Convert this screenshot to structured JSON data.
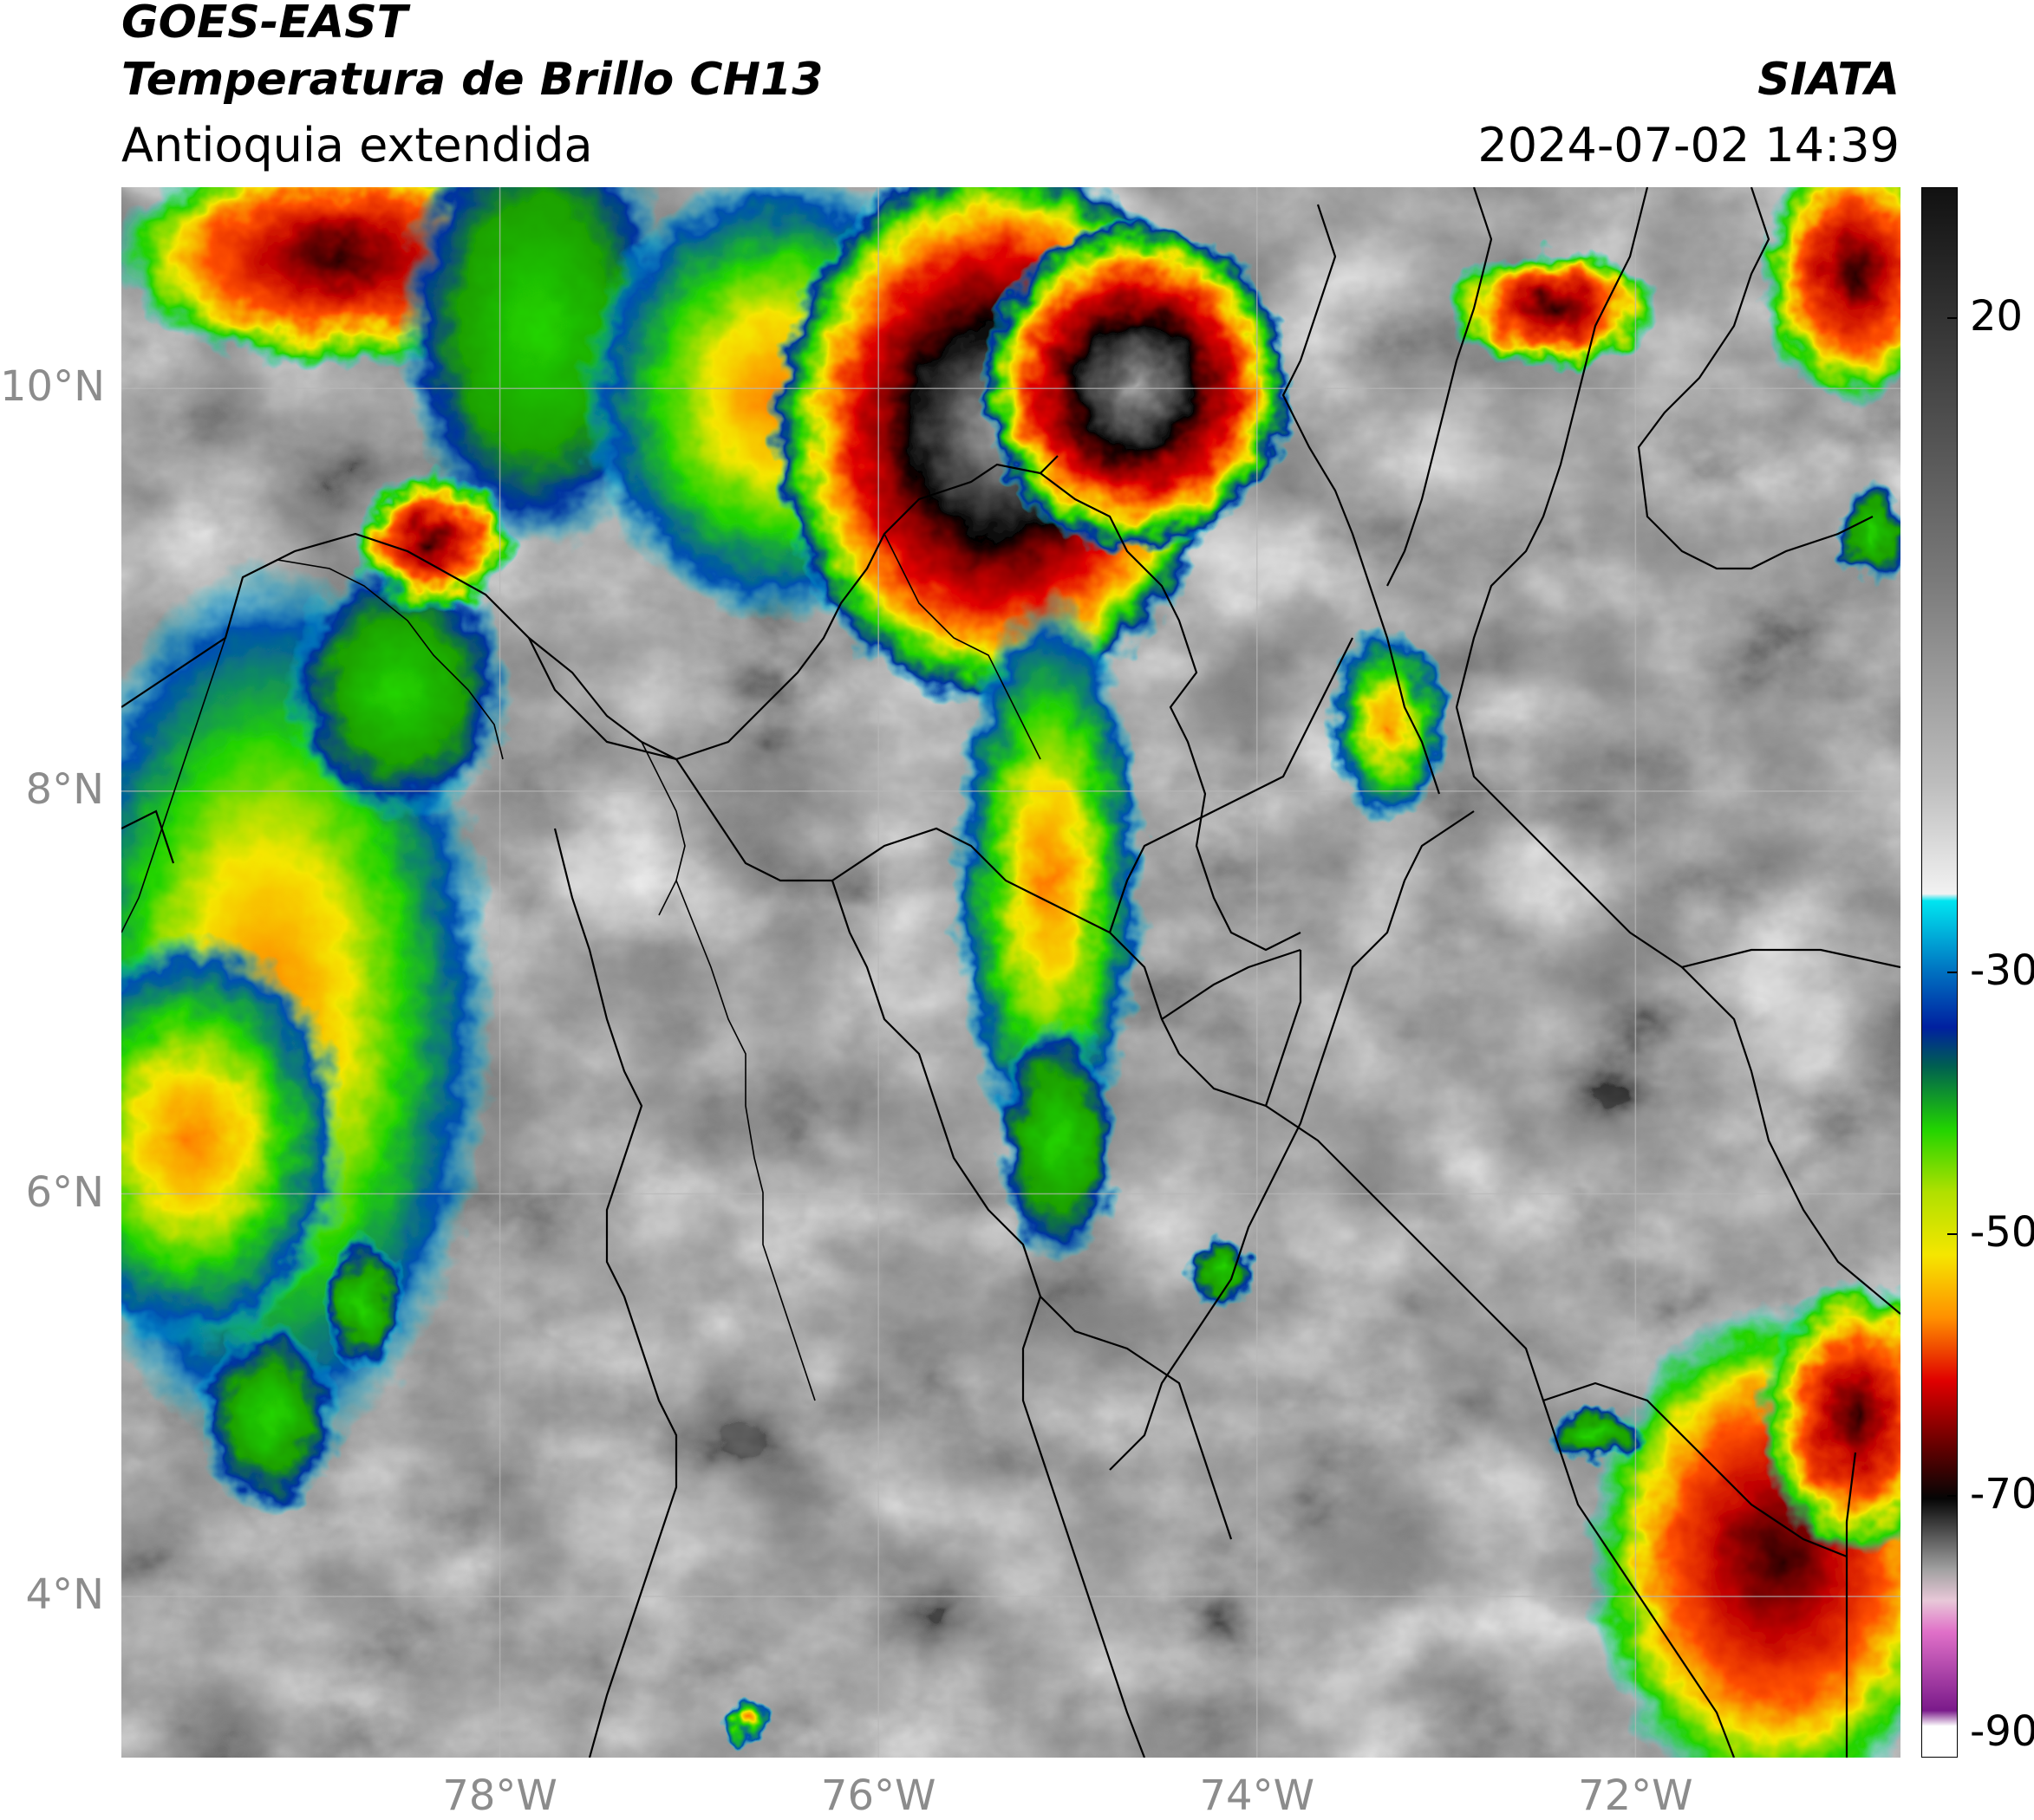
{
  "header": {
    "satellite": "GOES-EAST",
    "product": "Temperatura de Brillo CH13",
    "region": "Antioquia extendida",
    "agency": "SIATA",
    "datetime": "2024-07-02 14:39"
  },
  "map": {
    "lon_range": [
      -80.0,
      -70.6
    ],
    "lat_range": [
      3.2,
      11.0
    ],
    "lat_ticks": [
      {
        "value": 10,
        "label": "10°N"
      },
      {
        "value": 8,
        "label": "8°N"
      },
      {
        "value": 6,
        "label": "6°N"
      },
      {
        "value": 4,
        "label": "4°N"
      }
    ],
    "lon_ticks": [
      {
        "value": -78,
        "label": "78°W"
      },
      {
        "value": -76,
        "label": "76°W"
      },
      {
        "value": -74,
        "label": "74°W"
      },
      {
        "value": -72,
        "label": "72°W"
      }
    ],
    "gridlines": true
  },
  "colorbar": {
    "range": [
      -90,
      30
    ],
    "ticks": [
      {
        "value": 20,
        "label": "20"
      },
      {
        "value": -30,
        "label": "-30"
      },
      {
        "value": -50,
        "label": "-50"
      },
      {
        "value": -70,
        "label": "-70"
      },
      {
        "value": -90,
        "label": "-90"
      }
    ],
    "colors": {
      "warm_high": "#111111",
      "warm_mid": "#8a8a8a",
      "warm_low": "#f2f2f2",
      "cyan": "#00e5f0",
      "blue": "#0033a0",
      "green": "#22d400",
      "yellow": "#f5e600",
      "orange": "#ff7a00",
      "red": "#e00000",
      "darkred": "#5a0000",
      "black": "#050505",
      "pink": "#e070c8",
      "purple": "#7a1a8a"
    }
  }
}
